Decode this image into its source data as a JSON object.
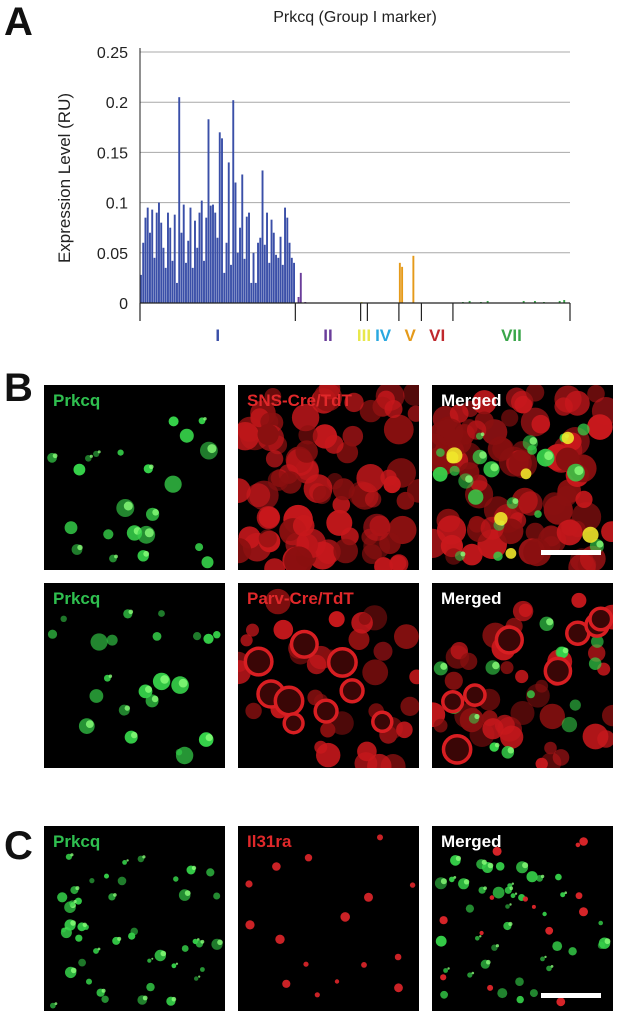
{
  "panels": {
    "a": "A",
    "b": "B",
    "c": "C"
  },
  "chart_data": {
    "type": "bar",
    "title": "Prkcq (Group I marker)",
    "xlabel": "",
    "ylabel": "Expression Level (RU)",
    "ylim": [
      0,
      0.25
    ],
    "yticks": [
      "0",
      "0.05",
      "0.1",
      "0.15",
      "0.2",
      "0.25"
    ],
    "grid": true,
    "groups": [
      {
        "name": "I",
        "color": "#3a4fa8",
        "values": [
          0.028,
          0.06,
          0.085,
          0.095,
          0.07,
          0.093,
          0.045,
          0.09,
          0.1,
          0.08,
          0.055,
          0.035,
          0.09,
          0.075,
          0.042,
          0.088,
          0.02,
          0.205,
          0.07,
          0.098,
          0.04,
          0.062,
          0.095,
          0.035,
          0.082,
          0.055,
          0.09,
          0.102,
          0.042,
          0.085,
          0.183,
          0.097,
          0.098,
          0.09,
          0.065,
          0.17,
          0.164,
          0.03,
          0.06,
          0.14,
          0.038,
          0.202,
          0.12,
          0.05,
          0.075,
          0.128,
          0.044,
          0.086,
          0.09,
          0.02,
          0.05,
          0.02,
          0.06,
          0.065,
          0.132,
          0.058,
          0.09,
          0.04,
          0.083,
          0.07,
          0.048,
          0.045,
          0.066,
          0.038,
          0.095,
          0.085,
          0.06,
          0.045,
          0.04
        ]
      },
      {
        "name": "II",
        "color": "#6a3d9a",
        "values": [
          0.0,
          0.006,
          0.03,
          0.0,
          0.001,
          0.0,
          0.0,
          0.0,
          0.0,
          0.0,
          0.0,
          0.0,
          0.0,
          0.0,
          0.0,
          0.0,
          0.0,
          0.0,
          0.0,
          0.0,
          0.0,
          0.0,
          0.0,
          0.0,
          0.0,
          0.0,
          0.0,
          0.0,
          0.0
        ]
      },
      {
        "name": "III",
        "color": "#e8e84a",
        "values": [
          0.001,
          0.0,
          0.0
        ]
      },
      {
        "name": "IV",
        "color": "#29a8e0",
        "values": [
          0.0,
          0.0,
          0.0,
          0.0,
          0.0,
          0.0,
          0.0,
          0.0,
          0.0,
          0.0,
          0.0,
          0.0,
          0.0,
          0.0
        ]
      },
      {
        "name": "V",
        "color": "#e59a1a",
        "values": [
          0.04,
          0.036,
          0.0,
          0.0,
          0.0,
          0.0,
          0.047,
          0.0,
          0.0,
          0.0
        ]
      },
      {
        "name": "VI",
        "color": "#c0282d",
        "values": [
          0.0,
          0.0,
          0.0,
          0.0,
          0.0,
          0.0,
          0.0,
          0.0,
          0.0,
          0.0,
          0.0,
          0.0,
          0.0,
          0.0
        ]
      },
      {
        "name": "VII",
        "color": "#3aa64a",
        "values": [
          0.0,
          0.0,
          0.0,
          0.0,
          0.001,
          0.0,
          0.0,
          0.002,
          0.0,
          0.0,
          0.0,
          0.0,
          0.001,
          0.0,
          0.0,
          0.002,
          0.0,
          0.0,
          0.0,
          0.0,
          0.0,
          0.0,
          0.0,
          0.0,
          0.0,
          0.0,
          0.0,
          0.0,
          0.0,
          0.0,
          0.0,
          0.002,
          0.0,
          0.0,
          0.0,
          0.0,
          0.002,
          0.0,
          0.0,
          0.0,
          0.001,
          0.0,
          0.0,
          0.0,
          0.0,
          0.0,
          0.0,
          0.002,
          0.0,
          0.003,
          0.0,
          0.0
        ]
      }
    ]
  },
  "images": {
    "b_row1": [
      {
        "label": "Prkcq",
        "label_color": "#2fbf4f",
        "channel": "green"
      },
      {
        "label": "SNS-Cre/TdT",
        "label_color": "#e0282a",
        "channel": "red"
      },
      {
        "label": "Merged",
        "label_color": "#ffffff",
        "channel": "merged",
        "scale_bar": true
      }
    ],
    "b_row2": [
      {
        "label": "Prkcq",
        "label_color": "#2fbf4f",
        "channel": "green"
      },
      {
        "label": "Parv-Cre/TdT",
        "label_color": "#e0282a",
        "channel": "red-sparse"
      },
      {
        "label": "Merged",
        "label_color": "#ffffff",
        "channel": "merged2"
      }
    ],
    "c_row": [
      {
        "label": "Prkcq",
        "label_color": "#2fbf4f",
        "channel": "green-dense"
      },
      {
        "label": "Il31ra",
        "label_color": "#e0282a",
        "channel": "red-dots"
      },
      {
        "label": "Merged",
        "label_color": "#ffffff",
        "channel": "merged3",
        "scale_bar": true
      }
    ]
  }
}
